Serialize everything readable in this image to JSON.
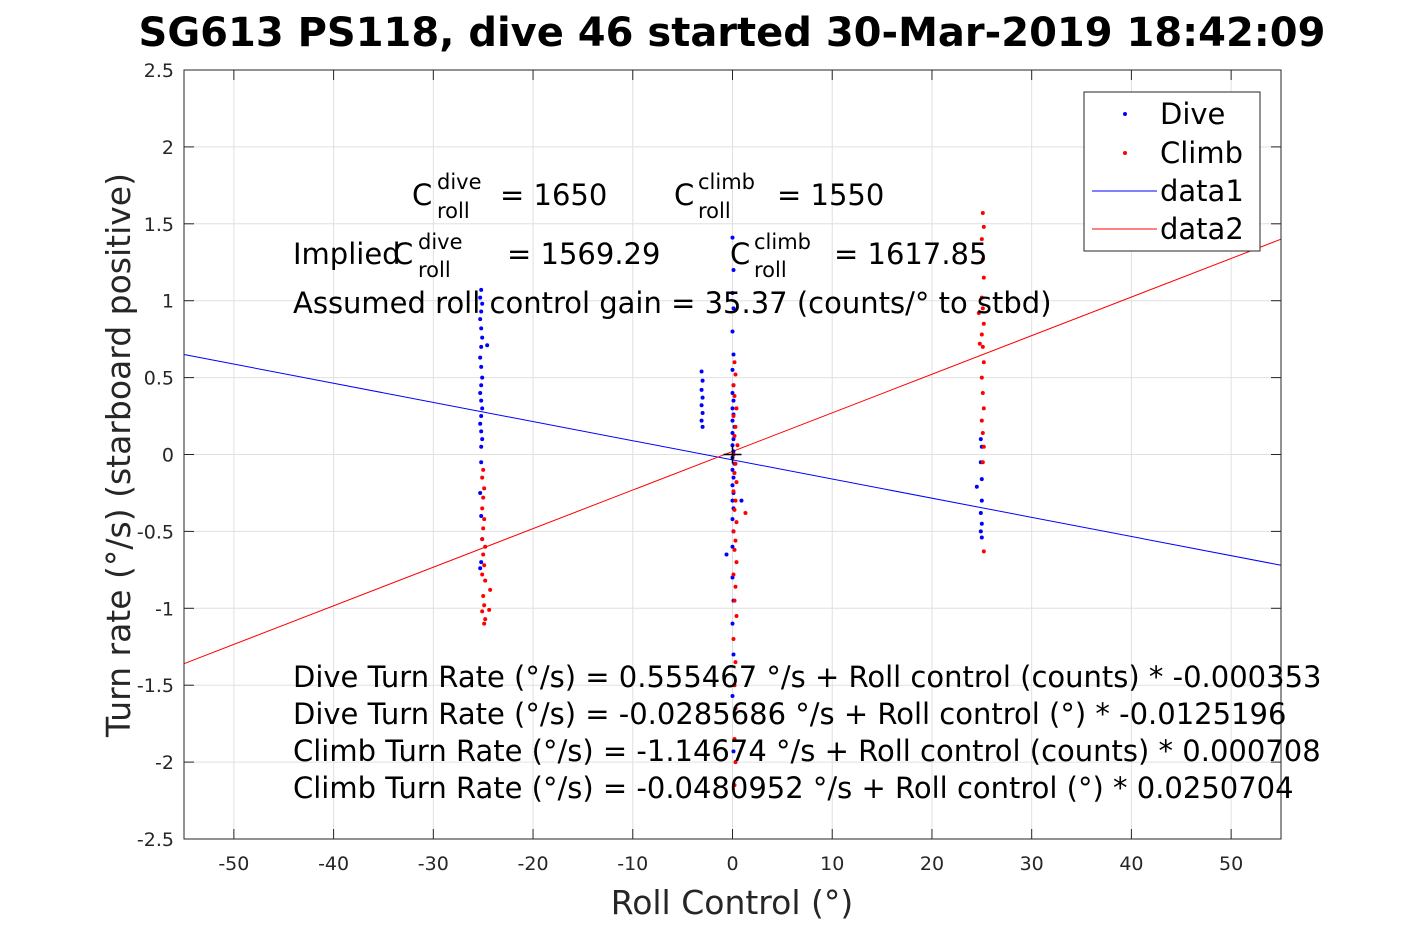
{
  "chart_data": {
    "type": "scatter",
    "title": "SG613 PS118, dive 46 started 30-Mar-2019 18:42:09",
    "xlabel": "Roll Control (°)",
    "ylabel": "Turn rate (°/s) (starboard positive)",
    "xlim": [
      -55,
      55
    ],
    "ylim": [
      -2.5,
      2.5
    ],
    "x_ticks": [
      -50,
      -40,
      -30,
      -20,
      -10,
      0,
      10,
      20,
      30,
      40,
      50
    ],
    "y_ticks": [
      2.5,
      2,
      1.5,
      1,
      0.5,
      0,
      -0.5,
      -1,
      -1.5,
      -2,
      -2.5
    ],
    "grid": true,
    "legend_position": "top-right",
    "legend": [
      "Dive",
      "Climb",
      "data1",
      "data2"
    ],
    "colors": {
      "dive": "#0000ff",
      "climb": "#ff0000",
      "axis": "#262626",
      "grid": "#e0e0e0"
    },
    "annotations": {
      "c_dive": {
        "base": "C",
        "sup": "dive",
        "sub": "roll",
        "value": "= 1650"
      },
      "c_climb": {
        "base": "C",
        "sup": "climb",
        "sub": "roll",
        "value": "= 1550"
      },
      "implied_prefix": "Implied ",
      "implied_dive": {
        "base": "C",
        "sup": "dive",
        "sub": "roll",
        "value": "= 1569.29"
      },
      "implied_climb": {
        "base": "C",
        "sup": "climb",
        "sub": "roll",
        "value": "= 1617.85"
      },
      "gain": "Assumed roll control gain = 35.37 (counts/° to stbd)",
      "equations": [
        "Dive Turn Rate (°/s) = 0.555467 °/s + Roll control (counts) * -0.000353",
        "Dive Turn Rate (°/s) = -0.0285686 °/s + Roll control (°) * -0.0125196",
        "Climb Turn Rate (°/s) = -1.14674 °/s + Roll control (counts) * 0.000708",
        "Climb Turn Rate (°/s) = -0.0480952 °/s + Roll control (°) * 0.0250704"
      ]
    },
    "series": [
      {
        "name": "data1",
        "kind": "line",
        "color": "#0000ff",
        "x": [
          -55,
          55
        ],
        "y": [
          0.65,
          -0.72
        ]
      },
      {
        "name": "data2",
        "kind": "line",
        "color": "#ff0000",
        "x": [
          -55,
          55
        ],
        "y": [
          -1.36,
          1.4
        ]
      },
      {
        "name": "Dive",
        "kind": "scatter",
        "color": "#0000ff",
        "points": [
          [
            -25.2,
            1.07
          ],
          [
            -25.3,
            1.02
          ],
          [
            -25.1,
            0.98
          ],
          [
            -25.2,
            0.93
          ],
          [
            -25.3,
            0.88
          ],
          [
            -25.2,
            0.82
          ],
          [
            -25.1,
            0.76
          ],
          [
            -25.2,
            0.7
          ],
          [
            -24.6,
            0.71
          ],
          [
            -25.3,
            0.63
          ],
          [
            -25.2,
            0.57
          ],
          [
            -25.1,
            0.5
          ],
          [
            -25.2,
            0.45
          ],
          [
            -25.3,
            0.4
          ],
          [
            -25.2,
            0.35
          ],
          [
            -25.1,
            0.3
          ],
          [
            -25.2,
            0.25
          ],
          [
            -25.3,
            0.2
          ],
          [
            -25.2,
            0.15
          ],
          [
            -25.1,
            0.1
          ],
          [
            -25.2,
            0.05
          ],
          [
            -25.2,
            -0.05
          ],
          [
            -25.3,
            -0.25
          ],
          [
            -25.2,
            -0.4
          ],
          [
            -25.1,
            -0.55
          ],
          [
            -25.2,
            -0.7
          ],
          [
            -25.3,
            -0.74
          ],
          [
            -3.1,
            0.54
          ],
          [
            -3.0,
            0.48
          ],
          [
            -3.1,
            0.42
          ],
          [
            -3.0,
            0.37
          ],
          [
            -3.1,
            0.32
          ],
          [
            -3.0,
            0.27
          ],
          [
            -3.1,
            0.22
          ],
          [
            -3.0,
            0.18
          ],
          [
            0,
            1.41
          ],
          [
            0.1,
            1.2
          ],
          [
            0,
            1.05
          ],
          [
            0.1,
            0.95
          ],
          [
            0,
            0.8
          ],
          [
            0.1,
            0.65
          ],
          [
            0,
            0.55
          ],
          [
            0.1,
            0.45
          ],
          [
            0,
            0.4
          ],
          [
            0.1,
            0.35
          ],
          [
            0,
            0.3
          ],
          [
            0.1,
            0.26
          ],
          [
            0,
            0.22
          ],
          [
            0.2,
            0.18
          ],
          [
            0,
            0.14
          ],
          [
            0.1,
            0.1
          ],
          [
            0,
            0.06
          ],
          [
            0.1,
            0.02
          ],
          [
            0,
            -0.02
          ],
          [
            0.2,
            -0.06
          ],
          [
            0,
            -0.1
          ],
          [
            0.1,
            -0.15
          ],
          [
            0,
            -0.2
          ],
          [
            0.1,
            -0.25
          ],
          [
            0,
            -0.3
          ],
          [
            0.9,
            -0.3
          ],
          [
            0.1,
            -0.35
          ],
          [
            0,
            -0.42
          ],
          [
            0.1,
            -0.5
          ],
          [
            0,
            -0.6
          ],
          [
            -0.6,
            -0.65
          ],
          [
            0,
            -0.8
          ],
          [
            0.1,
            -0.95
          ],
          [
            0,
            -1.1
          ],
          [
            0.1,
            -1.3
          ],
          [
            0,
            -1.57
          ],
          [
            0.1,
            -1.93
          ],
          [
            24.5,
            -0.21
          ],
          [
            25.0,
            -0.16
          ],
          [
            24.9,
            -0.05
          ],
          [
            25.0,
            0.05
          ],
          [
            24.9,
            0.1
          ],
          [
            25.0,
            -0.3
          ],
          [
            24.9,
            -0.38
          ],
          [
            25.0,
            -0.45
          ],
          [
            24.9,
            -0.5
          ],
          [
            25.0,
            -0.54
          ]
        ]
      },
      {
        "name": "Climb",
        "kind": "scatter",
        "color": "#ff0000",
        "points": [
          [
            -25.0,
            -0.1
          ],
          [
            -25.1,
            -0.15
          ],
          [
            -24.9,
            -0.22
          ],
          [
            -25.0,
            -0.28
          ],
          [
            -25.1,
            -0.35
          ],
          [
            -24.9,
            -0.42
          ],
          [
            -25.0,
            -0.48
          ],
          [
            -25.1,
            -0.55
          ],
          [
            -24.8,
            -0.6
          ],
          [
            -25.0,
            -0.65
          ],
          [
            -24.9,
            -0.72
          ],
          [
            -25.1,
            -0.78
          ],
          [
            -24.8,
            -0.82
          ],
          [
            -24.3,
            -0.88
          ],
          [
            -25.0,
            -0.92
          ],
          [
            -24.9,
            -0.98
          ],
          [
            -25.1,
            -1.02
          ],
          [
            -24.4,
            -1.01
          ],
          [
            -24.8,
            -1.07
          ],
          [
            -24.9,
            -1.1
          ],
          [
            0.2,
            0.6
          ],
          [
            0.3,
            0.52
          ],
          [
            0.1,
            0.45
          ],
          [
            0.2,
            0.38
          ],
          [
            0.4,
            0.3
          ],
          [
            0.1,
            0.25
          ],
          [
            0.3,
            0.18
          ],
          [
            0.2,
            0.12
          ],
          [
            0.5,
            0.06
          ],
          [
            0.1,
            0.0
          ],
          [
            0.3,
            -0.06
          ],
          [
            0.2,
            -0.12
          ],
          [
            0.4,
            -0.18
          ],
          [
            0.1,
            -0.24
          ],
          [
            0.3,
            -0.3
          ],
          [
            0.2,
            -0.36
          ],
          [
            1.3,
            -0.38
          ],
          [
            0.4,
            -0.44
          ],
          [
            0.1,
            -0.5
          ],
          [
            0.3,
            -0.56
          ],
          [
            0.2,
            -0.62
          ],
          [
            0.4,
            -0.7
          ],
          [
            0.1,
            -0.78
          ],
          [
            0.3,
            -0.86
          ],
          [
            0.2,
            -0.95
          ],
          [
            0.4,
            -1.05
          ],
          [
            0.1,
            -1.2
          ],
          [
            0.3,
            -1.35
          ],
          [
            0.2,
            -1.5
          ],
          [
            0.3,
            -1.65
          ],
          [
            0.2,
            -1.85
          ],
          [
            0.3,
            -2.0
          ],
          [
            0.2,
            -2.15
          ],
          [
            25.1,
            1.57
          ],
          [
            25.2,
            1.48
          ],
          [
            25.0,
            1.4
          ],
          [
            25.1,
            1.27
          ],
          [
            25.2,
            1.15
          ],
          [
            25.0,
            1.02
          ],
          [
            25.1,
            0.95
          ],
          [
            24.7,
            0.92
          ],
          [
            25.2,
            0.85
          ],
          [
            25.0,
            0.78
          ],
          [
            25.1,
            0.7
          ],
          [
            24.8,
            0.72
          ],
          [
            25.2,
            0.6
          ],
          [
            25.0,
            0.5
          ],
          [
            25.1,
            0.4
          ],
          [
            25.2,
            0.3
          ],
          [
            25.0,
            0.22
          ],
          [
            25.1,
            0.14
          ],
          [
            25.2,
            0.05
          ],
          [
            25.1,
            -0.05
          ],
          [
            25.2,
            -0.63
          ]
        ]
      }
    ],
    "marker": {
      "x": 0,
      "y": 0,
      "symbol": "+"
    }
  }
}
